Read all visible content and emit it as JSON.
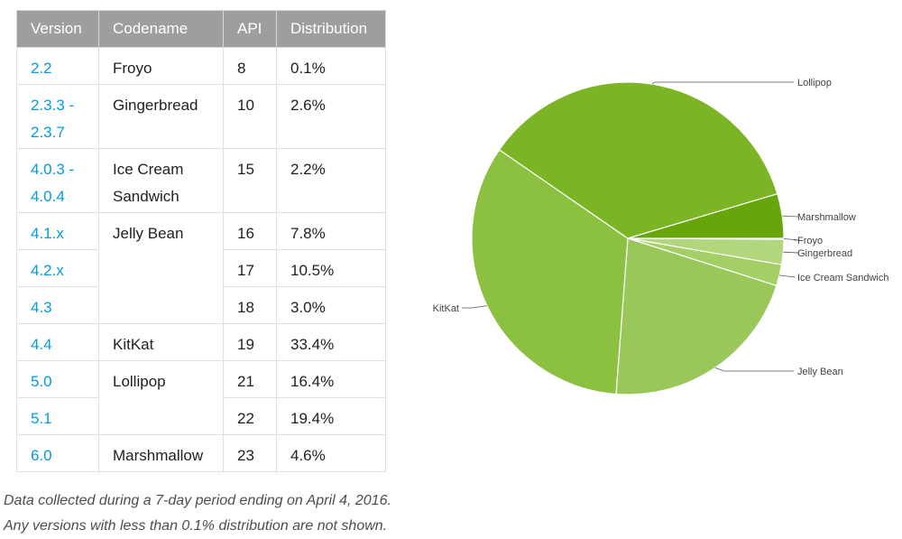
{
  "table": {
    "headers": [
      "Version",
      "Codename",
      "API",
      "Distribution"
    ],
    "rows": [
      {
        "version": "2.2",
        "codename": "Froyo",
        "api": "8",
        "dist": "0.1%"
      },
      {
        "version": "2.3.3 -\n2.3.7",
        "codename": "Gingerbread",
        "api": "10",
        "dist": "2.6%"
      },
      {
        "version": "4.0.3 -\n4.0.4",
        "codename": "Ice Cream\nSandwich",
        "api": "15",
        "dist": "2.2%"
      },
      {
        "version": "4.1.x",
        "codename": "Jelly Bean",
        "api": "16",
        "dist": "7.8%"
      },
      {
        "version": "4.2.x",
        "codename": "",
        "api": "17",
        "dist": "10.5%"
      },
      {
        "version": "4.3",
        "codename": "",
        "api": "18",
        "dist": "3.0%"
      },
      {
        "version": "4.4",
        "codename": "KitKat",
        "api": "19",
        "dist": "33.4%"
      },
      {
        "version": "5.0",
        "codename": "Lollipop",
        "api": "21",
        "dist": "16.4%"
      },
      {
        "version": "5.1",
        "codename": "",
        "api": "22",
        "dist": "19.4%"
      },
      {
        "version": "6.0",
        "codename": "Marshmallow",
        "api": "23",
        "dist": "4.6%"
      }
    ]
  },
  "notes": [
    "Data collected during a 7-day period ending on April 4, 2016.",
    "Any versions with less than 0.1% distribution are not shown."
  ],
  "chart_data": {
    "type": "pie",
    "title": "",
    "slices": [
      {
        "label": "Froyo",
        "value": 0.1,
        "color": "#b2d67c"
      },
      {
        "label": "Gingerbread",
        "value": 2.6,
        "color": "#b2d67c"
      },
      {
        "label": "Ice Cream Sandwich",
        "value": 2.2,
        "color": "#a4ce66"
      },
      {
        "label": "Jelly Bean",
        "value": 21.3,
        "color": "#9ac75a"
      },
      {
        "label": "KitKat",
        "value": 33.4,
        "color": "#8bc040"
      },
      {
        "label": "Lollipop",
        "value": 35.8,
        "color": "#7bb526"
      },
      {
        "label": "Marshmallow",
        "value": 4.6,
        "color": "#66a60a"
      }
    ],
    "legend": "none",
    "labels": "outside with leader lines"
  }
}
